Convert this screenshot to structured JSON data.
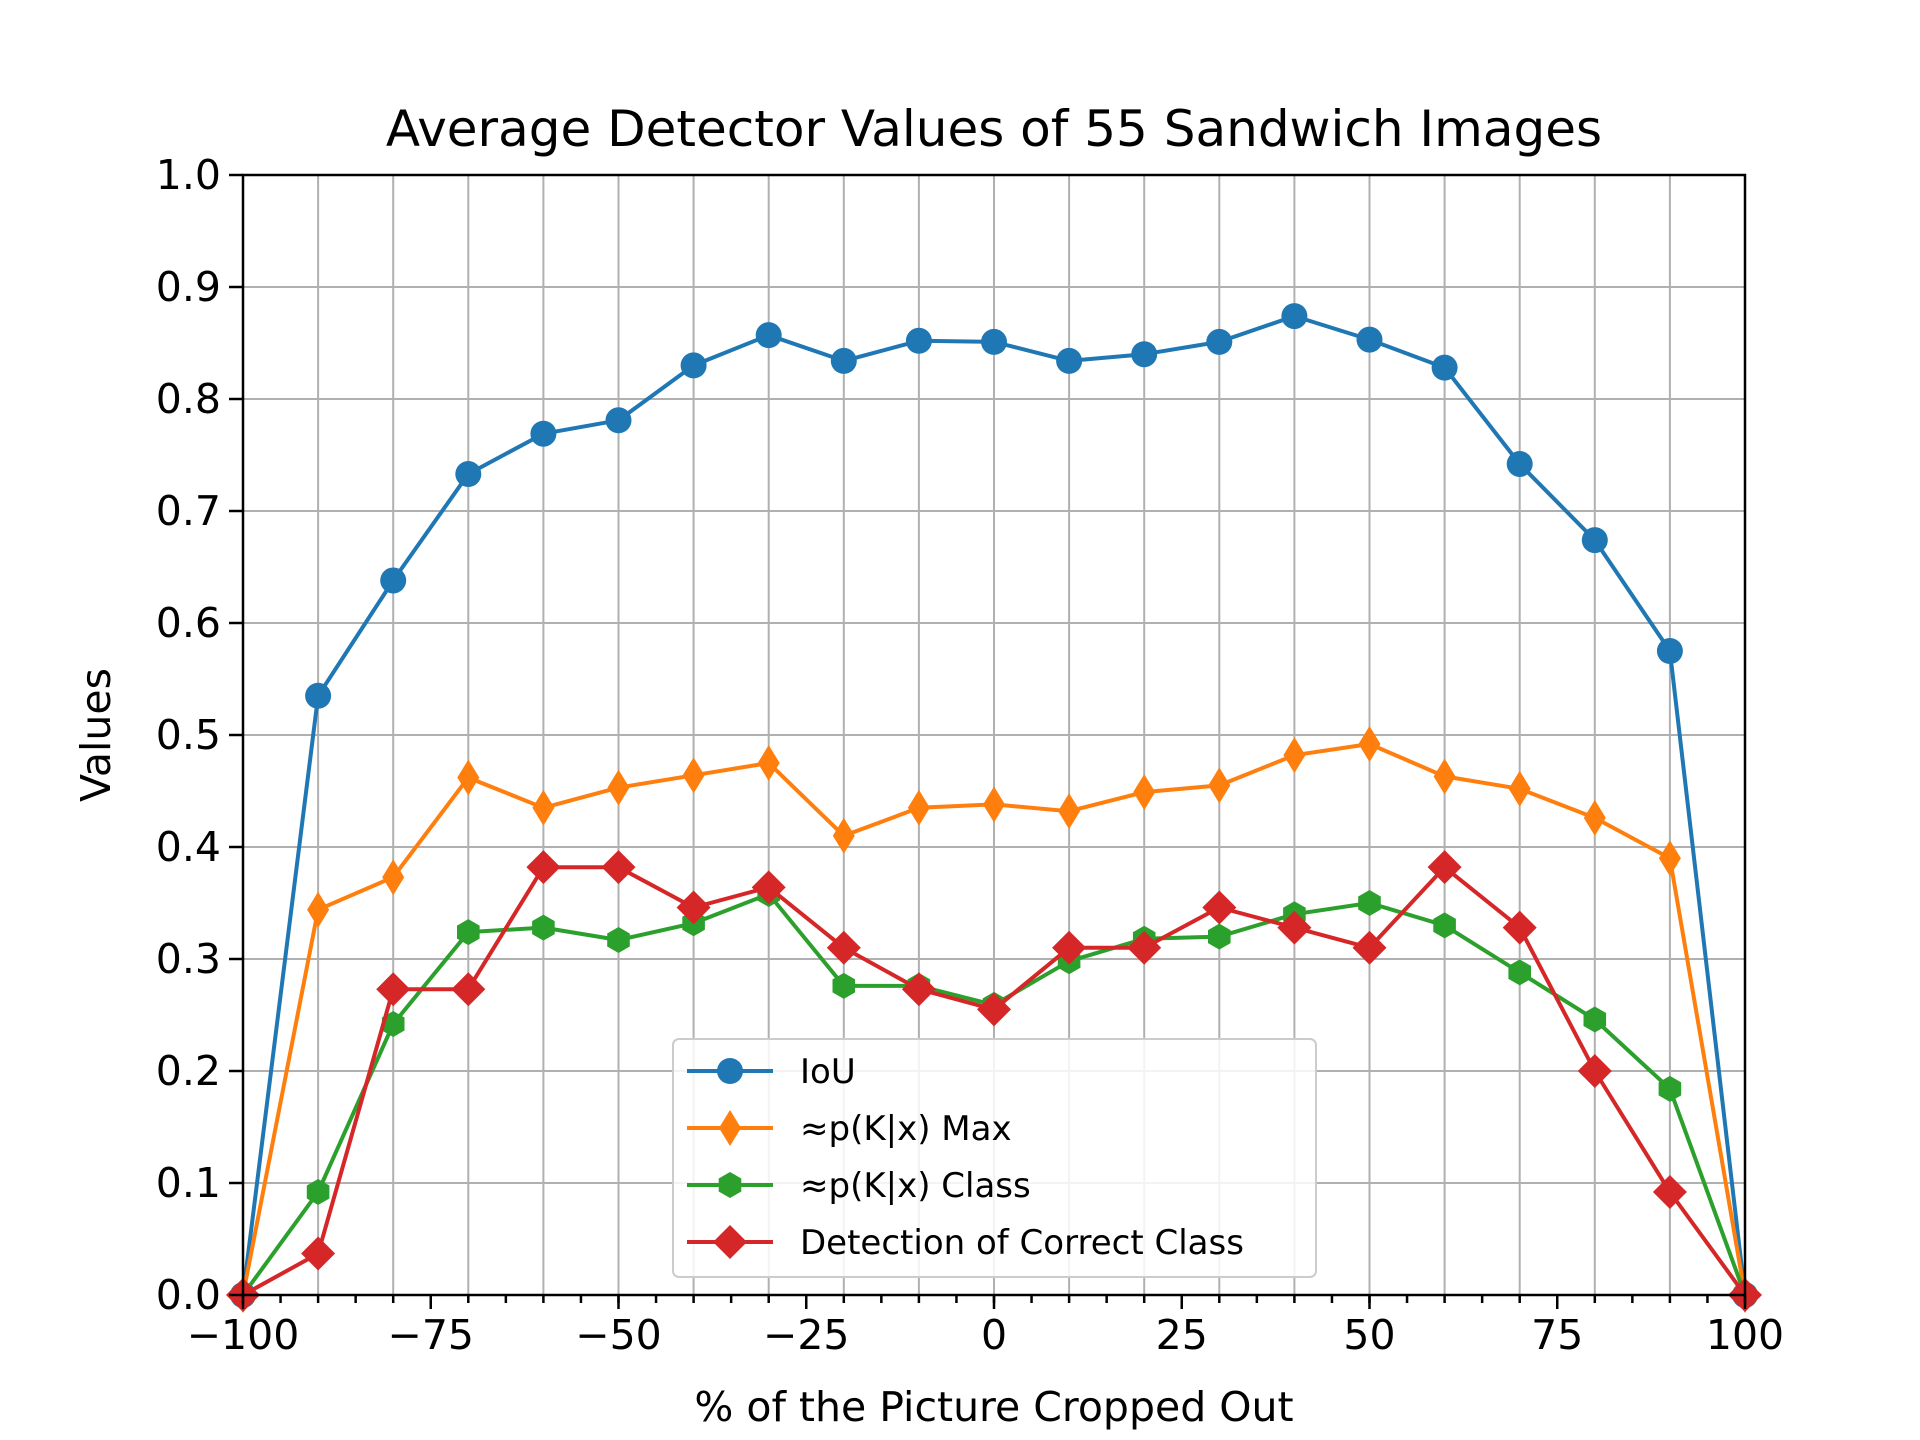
{
  "chart_data": {
    "type": "line",
    "title": "Average Detector Values of 55 Sandwich Images",
    "xlabel": "% of the Picture Cropped Out",
    "ylabel": "Values",
    "xlim": [
      -100,
      100
    ],
    "ylim": [
      0.0,
      1.0
    ],
    "x_major_ticks": [
      -100,
      -75,
      -50,
      -25,
      0,
      25,
      50,
      75,
      100
    ],
    "x_tick_labels": [
      "−100",
      "−75",
      "−50",
      "−25",
      "0",
      "25",
      "50",
      "75",
      "100"
    ],
    "y_ticks": [
      0.0,
      0.1,
      0.2,
      0.3,
      0.4,
      0.5,
      0.6,
      0.7,
      0.8,
      0.9,
      1.0
    ],
    "y_tick_labels": [
      "0.0",
      "0.1",
      "0.2",
      "0.3",
      "0.4",
      "0.5",
      "0.6",
      "0.7",
      "0.8",
      "0.9",
      "1.0"
    ],
    "grid": true,
    "legend_position": "lower-center",
    "x": [
      -100,
      -90,
      -80,
      -70,
      -60,
      -50,
      -40,
      -30,
      -20,
      -10,
      0,
      10,
      20,
      30,
      40,
      50,
      60,
      70,
      80,
      90,
      100
    ],
    "series": [
      {
        "name": "IoU",
        "color": "#1f77b4",
        "marker": "circle",
        "values": [
          0.0,
          0.535,
          0.638,
          0.733,
          0.769,
          0.781,
          0.83,
          0.857,
          0.834,
          0.852,
          0.851,
          0.834,
          0.84,
          0.851,
          0.874,
          0.853,
          0.828,
          0.742,
          0.674,
          0.575,
          0.0
        ]
      },
      {
        "name": "≈p(K|x) Max",
        "color": "#ff7f0e",
        "marker": "thin-diamond",
        "values": [
          0.0,
          0.344,
          0.373,
          0.462,
          0.435,
          0.453,
          0.464,
          0.475,
          0.41,
          0.435,
          0.438,
          0.432,
          0.449,
          0.455,
          0.482,
          0.492,
          0.463,
          0.452,
          0.426,
          0.39,
          0.0
        ]
      },
      {
        "name": "≈p(K|x) Class",
        "color": "#2ca02c",
        "marker": "hexagon",
        "values": [
          0.0,
          0.092,
          0.242,
          0.324,
          0.328,
          0.317,
          0.332,
          0.358,
          0.276,
          0.276,
          0.259,
          0.298,
          0.318,
          0.32,
          0.34,
          0.35,
          0.33,
          0.288,
          0.246,
          0.184,
          0.0
        ]
      },
      {
        "name": "Detection of Correct Class",
        "color": "#d62728",
        "marker": "diamond",
        "values": [
          0.0,
          0.037,
          0.273,
          0.273,
          0.382,
          0.382,
          0.346,
          0.364,
          0.31,
          0.273,
          0.255,
          0.31,
          0.31,
          0.346,
          0.328,
          0.31,
          0.382,
          0.328,
          0.2,
          0.092,
          0.0
        ]
      }
    ]
  }
}
